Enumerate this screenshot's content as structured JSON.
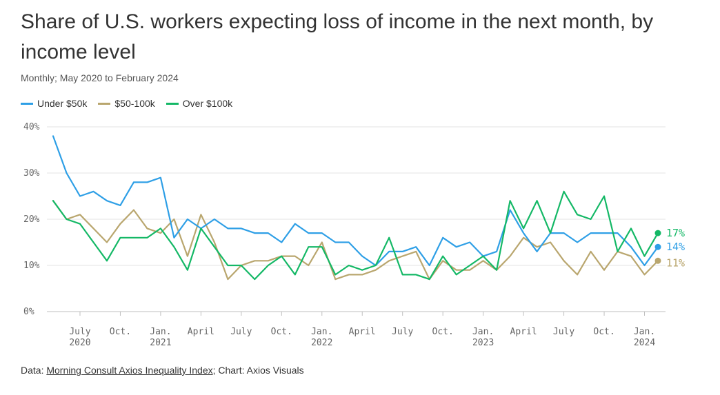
{
  "title": "Share of U.S. workers expecting loss of income in the next month, by income level",
  "subtitle": "Monthly; May 2020 to February 2024",
  "footer": {
    "prefix": "Data: ",
    "source_link": "Morning Consult Axios Inequality Index",
    "suffix": "; Chart: Axios Visuals"
  },
  "chart_data": {
    "type": "line",
    "title": "Share of U.S. workers expecting loss of income in the next month, by income level",
    "subtitle": "Monthly; May 2020 to February 2024",
    "x": [
      "2020-05",
      "2020-06",
      "2020-07",
      "2020-08",
      "2020-09",
      "2020-10",
      "2020-11",
      "2020-12",
      "2021-01",
      "2021-02",
      "2021-03",
      "2021-04",
      "2021-05",
      "2021-06",
      "2021-07",
      "2021-08",
      "2021-09",
      "2021-10",
      "2021-11",
      "2021-12",
      "2022-01",
      "2022-02",
      "2022-03",
      "2022-04",
      "2022-05",
      "2022-06",
      "2022-07",
      "2022-08",
      "2022-09",
      "2022-10",
      "2022-11",
      "2022-12",
      "2023-01",
      "2023-02",
      "2023-03",
      "2023-04",
      "2023-05",
      "2023-06",
      "2023-07",
      "2023-08",
      "2023-09",
      "2023-10",
      "2023-11",
      "2023-12",
      "2024-01",
      "2024-02"
    ],
    "x_ticks": [
      {
        "month": "2020-07",
        "label": "July",
        "year": "2020"
      },
      {
        "month": "2020-10",
        "label": "Oct.",
        "year": ""
      },
      {
        "month": "2021-01",
        "label": "Jan.",
        "year": "2021"
      },
      {
        "month": "2021-04",
        "label": "April",
        "year": ""
      },
      {
        "month": "2021-07",
        "label": "July",
        "year": ""
      },
      {
        "month": "2021-10",
        "label": "Oct.",
        "year": ""
      },
      {
        "month": "2022-01",
        "label": "Jan.",
        "year": "2022"
      },
      {
        "month": "2022-04",
        "label": "April",
        "year": ""
      },
      {
        "month": "2022-07",
        "label": "July",
        "year": ""
      },
      {
        "month": "2022-10",
        "label": "Oct.",
        "year": ""
      },
      {
        "month": "2023-01",
        "label": "Jan.",
        "year": "2023"
      },
      {
        "month": "2023-04",
        "label": "April",
        "year": ""
      },
      {
        "month": "2023-07",
        "label": "July",
        "year": ""
      },
      {
        "month": "2023-10",
        "label": "Oct.",
        "year": ""
      },
      {
        "month": "2024-01",
        "label": "Jan.",
        "year": "2024"
      }
    ],
    "y_ticks": [
      0,
      10,
      20,
      30,
      40
    ],
    "y_tick_labels": [
      "0%",
      "10%",
      "20%",
      "30%",
      "40%"
    ],
    "ylim": [
      0,
      40
    ],
    "grid": true,
    "legend_position": "top-left",
    "series": [
      {
        "name": "Under $50k",
        "color": "#2e9fe6",
        "end_label": "14%",
        "values": [
          38,
          30,
          25,
          26,
          24,
          23,
          28,
          28,
          29,
          16,
          20,
          18,
          20,
          18,
          18,
          17,
          17,
          15,
          19,
          17,
          17,
          15,
          15,
          12,
          10,
          13,
          13,
          14,
          10,
          16,
          14,
          15,
          12,
          13,
          22,
          17,
          13,
          17,
          17,
          15,
          17,
          17,
          17,
          14,
          10,
          14
        ]
      },
      {
        "name": "$50-100k",
        "color": "#b9a66e",
        "end_label": "11%",
        "values": [
          24,
          20,
          21,
          18,
          15,
          19,
          22,
          18,
          17,
          20,
          12,
          21,
          15,
          7,
          10,
          11,
          11,
          12,
          12,
          10,
          15,
          7,
          8,
          8,
          9,
          11,
          12,
          13,
          7,
          11,
          9,
          9,
          11,
          9,
          12,
          16,
          14,
          15,
          11,
          8,
          13,
          9,
          13,
          12,
          8,
          11
        ]
      },
      {
        "name": "Over $100k",
        "color": "#14b866",
        "end_label": "17%",
        "values": [
          24,
          20,
          19,
          15,
          11,
          16,
          16,
          16,
          18,
          14,
          9,
          18,
          14,
          10,
          10,
          7,
          10,
          12,
          8,
          14,
          14,
          8,
          10,
          9,
          10,
          16,
          8,
          8,
          7,
          12,
          8,
          10,
          12,
          9,
          24,
          18,
          24,
          17,
          26,
          21,
          20,
          25,
          13,
          18,
          12,
          17
        ]
      }
    ]
  }
}
